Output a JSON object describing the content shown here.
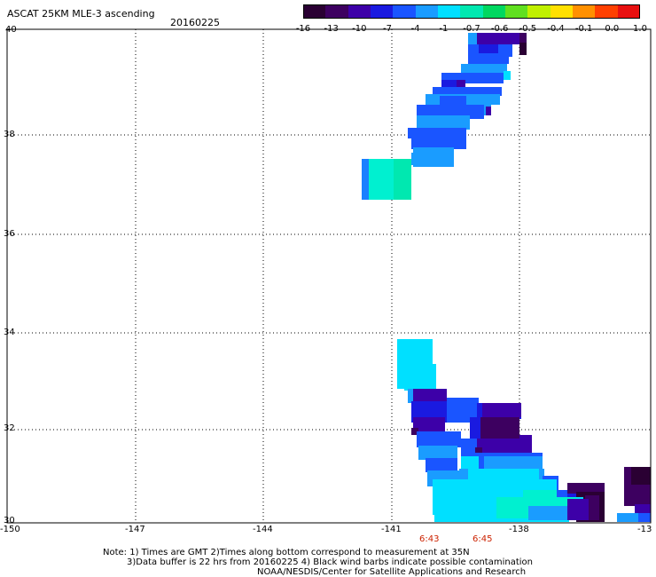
{
  "header": {
    "title": "ASCAT 25KM MLE-3 ascending",
    "date": "20160225"
  },
  "colorbar": {
    "labels": [
      "-16",
      "-13",
      "-10",
      "-7",
      "-4",
      "-1",
      "-0.7",
      "-0.6",
      "-0.5",
      "-0.4",
      "-0.1",
      "0.0",
      "1.0"
    ],
    "colors": [
      "#2a0033",
      "#3d0060",
      "#3d00a8",
      "#1a1ae0",
      "#1a55ff",
      "#1a9cff",
      "#00e0ff",
      "#00e8b0",
      "#00d860",
      "#60e020",
      "#c0f000",
      "#ffe000",
      "#ff9000",
      "#ff4000",
      "#e81010"
    ]
  },
  "axes": {
    "y_labels": [
      "40",
      "38",
      "36",
      "34",
      "32",
      "30"
    ],
    "x_labels": [
      "-150",
      "-147",
      "-144",
      "-141",
      "-138",
      "-13"
    ]
  },
  "times": [
    "6:43",
    "6:45"
  ],
  "notes": {
    "line1": "Note: 1) Times are GMT 2)Times along bottom correspond to measurement at 35N",
    "line2": "3)Data buffer is 22 hrs from 20160225 4) Black wind barbs indicate possible contamination",
    "line3": "NOAA/NESDIS/Center for Satellite Applications and Research"
  }
}
